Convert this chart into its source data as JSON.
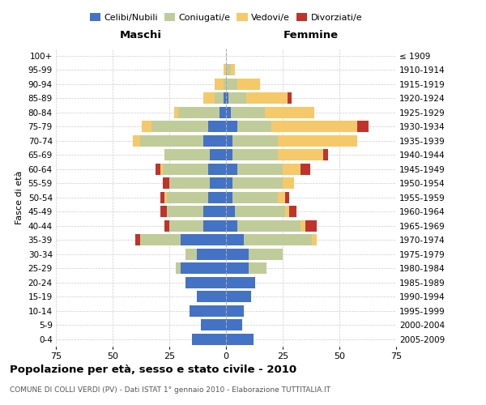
{
  "age_groups": [
    "0-4",
    "5-9",
    "10-14",
    "15-19",
    "20-24",
    "25-29",
    "30-34",
    "35-39",
    "40-44",
    "45-49",
    "50-54",
    "55-59",
    "60-64",
    "65-69",
    "70-74",
    "75-79",
    "80-84",
    "85-89",
    "90-94",
    "95-99",
    "100+"
  ],
  "birth_years": [
    "2005-2009",
    "2000-2004",
    "1995-1999",
    "1990-1994",
    "1985-1989",
    "1980-1984",
    "1975-1979",
    "1970-1974",
    "1965-1969",
    "1960-1964",
    "1955-1959",
    "1950-1954",
    "1945-1949",
    "1940-1944",
    "1935-1939",
    "1930-1934",
    "1925-1929",
    "1920-1924",
    "1915-1919",
    "1910-1914",
    "≤ 1909"
  ],
  "colors": {
    "celibe": "#4472c4",
    "coniugato": "#bfcc99",
    "vedovo": "#f5c96a",
    "divorziato": "#c0332c"
  },
  "males": {
    "celibe": [
      15,
      11,
      16,
      13,
      18,
      20,
      13,
      20,
      10,
      10,
      8,
      7,
      8,
      7,
      10,
      8,
      3,
      1,
      0,
      0,
      0
    ],
    "coniugato": [
      0,
      0,
      0,
      0,
      0,
      2,
      5,
      18,
      15,
      16,
      18,
      18,
      20,
      20,
      28,
      25,
      18,
      4,
      1,
      0,
      0
    ],
    "vedovo": [
      0,
      0,
      0,
      0,
      0,
      0,
      0,
      0,
      0,
      0,
      1,
      0,
      1,
      0,
      3,
      4,
      2,
      5,
      4,
      1,
      0
    ],
    "divorziato": [
      0,
      0,
      0,
      0,
      0,
      0,
      0,
      2,
      2,
      3,
      2,
      3,
      2,
      0,
      0,
      0,
      0,
      0,
      0,
      0,
      0
    ]
  },
  "females": {
    "nubile": [
      12,
      7,
      8,
      11,
      13,
      10,
      10,
      8,
      5,
      4,
      3,
      3,
      5,
      3,
      3,
      5,
      2,
      1,
      0,
      0,
      0
    ],
    "coniugata": [
      0,
      0,
      0,
      0,
      0,
      8,
      15,
      30,
      28,
      22,
      20,
      22,
      20,
      20,
      20,
      15,
      15,
      8,
      5,
      2,
      0
    ],
    "vedova": [
      0,
      0,
      0,
      0,
      0,
      0,
      0,
      2,
      2,
      2,
      3,
      5,
      8,
      20,
      35,
      38,
      22,
      18,
      10,
      2,
      0
    ],
    "divorziata": [
      0,
      0,
      0,
      0,
      0,
      0,
      0,
      0,
      5,
      3,
      2,
      0,
      4,
      2,
      0,
      5,
      0,
      2,
      0,
      0,
      0
    ]
  },
  "xlim": 75,
  "title": "Popolazione per età, sesso e stato civile - 2010",
  "subtitle": "COMUNE DI COLLI VERDI (PV) - Dati ISTAT 1° gennaio 2010 - Elaborazione TUTTITALIA.IT",
  "ylabel_left": "Fasce di età",
  "xlabel_left": "Maschi",
  "xlabel_right": "Femmine"
}
